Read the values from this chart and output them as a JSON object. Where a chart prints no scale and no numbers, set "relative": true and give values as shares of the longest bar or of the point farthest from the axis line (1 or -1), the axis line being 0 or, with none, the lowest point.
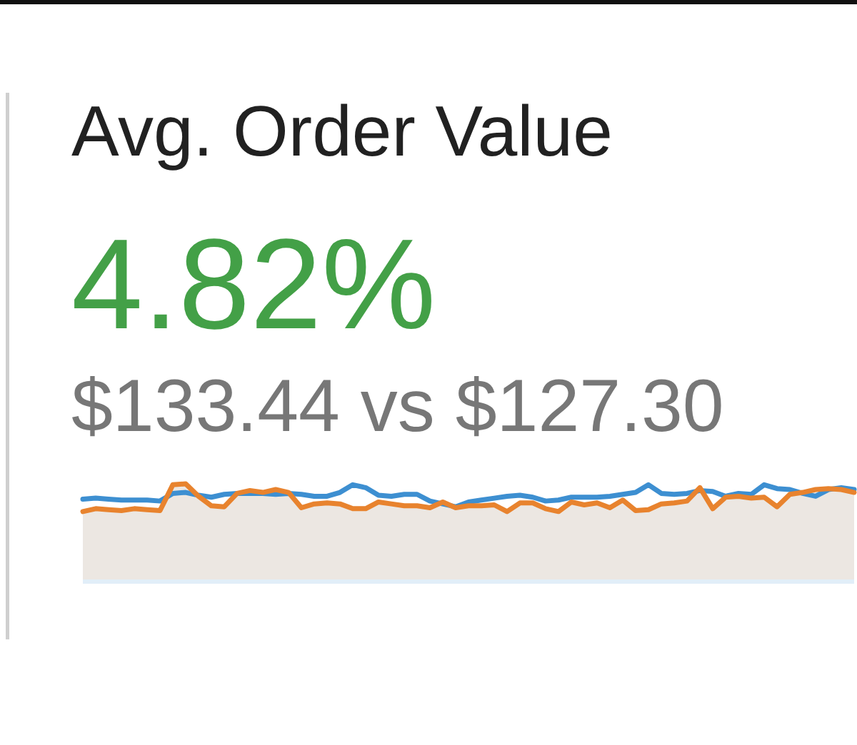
{
  "chart_data": {
    "type": "line",
    "title": "Avg. Order Value",
    "annotations": [
      "4.82%",
      "$133.44 vs $127.30"
    ],
    "relative": true,
    "categories": [
      null,
      null,
      null,
      null,
      null,
      null,
      null,
      null,
      null,
      null,
      null,
      null,
      null,
      null,
      null,
      null,
      null,
      null,
      null,
      null,
      null,
      null,
      null,
      null,
      null,
      null,
      null,
      null,
      null,
      null,
      null,
      null,
      null,
      null,
      null,
      null,
      null,
      null,
      null,
      null,
      null,
      null,
      null,
      null,
      null,
      null,
      null,
      null,
      null,
      null,
      null,
      null,
      null,
      null,
      null,
      null,
      null,
      null,
      null,
      null,
      null
    ],
    "series": [
      {
        "type": "line",
        "color": "#3d8fd1",
        "values": [
          0.84,
          0.85,
          0.84,
          0.83,
          0.83,
          0.83,
          0.82,
          0.9,
          0.91,
          0.88,
          0.86,
          0.89,
          0.9,
          0.9,
          0.9,
          0.89,
          0.9,
          0.89,
          0.87,
          0.87,
          0.91,
          0.99,
          0.96,
          0.88,
          0.87,
          0.89,
          0.89,
          0.82,
          0.79,
          0.76,
          0.81,
          0.83,
          0.85,
          0.87,
          0.88,
          0.86,
          0.82,
          0.83,
          0.86,
          0.86,
          0.86,
          0.87,
          0.89,
          0.91,
          0.99,
          0.9,
          0.89,
          0.9,
          0.93,
          0.92,
          0.87,
          0.9,
          0.89,
          0.99,
          0.95,
          0.94,
          0.9,
          0.87,
          0.94,
          0.96,
          0.94
        ]
      },
      {
        "type": "area",
        "color": "#e8832e",
        "values": [
          0.71,
          0.74,
          0.73,
          0.72,
          0.74,
          0.73,
          0.72,
          0.99,
          1.0,
          0.87,
          0.77,
          0.76,
          0.9,
          0.93,
          0.91,
          0.94,
          0.91,
          0.75,
          0.79,
          0.8,
          0.79,
          0.74,
          0.74,
          0.81,
          0.79,
          0.77,
          0.77,
          0.75,
          0.81,
          0.75,
          0.77,
          0.77,
          0.78,
          0.71,
          0.8,
          0.8,
          0.74,
          0.71,
          0.81,
          0.78,
          0.8,
          0.75,
          0.83,
          0.72,
          0.73,
          0.79,
          0.8,
          0.82,
          0.96,
          0.74,
          0.86,
          0.87,
          0.85,
          0.86,
          0.76,
          0.89,
          0.91,
          0.94,
          0.95,
          0.94,
          0.91
        ]
      }
    ]
  }
}
